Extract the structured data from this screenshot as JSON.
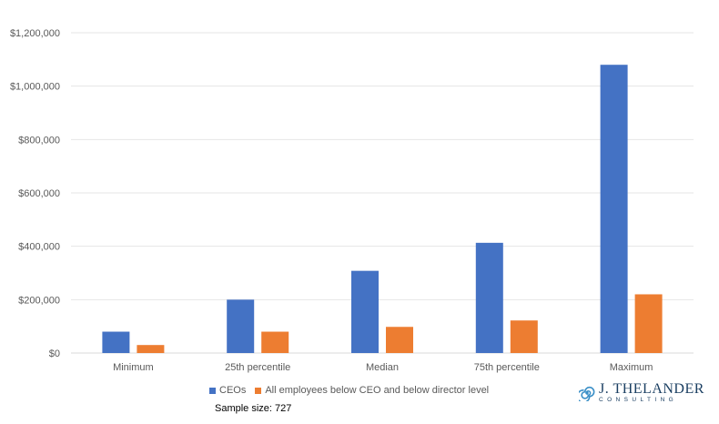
{
  "chart_data": {
    "type": "bar",
    "categories": [
      "Minimum",
      "25th percentile",
      "Median",
      "75th percentile",
      "Maximum"
    ],
    "series": [
      {
        "name": "CEOs",
        "values": [
          80000,
          200000,
          308000,
          413000,
          1080000
        ],
        "color": "#4472c4"
      },
      {
        "name": "All employees below CEO and below director level",
        "values": [
          30000,
          80000,
          98000,
          122000,
          220000
        ],
        "color": "#ed7d31"
      }
    ],
    "ylim": [
      0,
      1200000
    ],
    "yticks": [
      "$0",
      "$200,000",
      "$400,000",
      "$600,000",
      "$800,000",
      "$1,000,000",
      "$1,200,000"
    ],
    "grid": true,
    "legend_position": "bottom"
  },
  "footnote": "Sample size: 727",
  "logo": {
    "name": "J. THELANDER",
    "sub": "CONSULTING"
  }
}
